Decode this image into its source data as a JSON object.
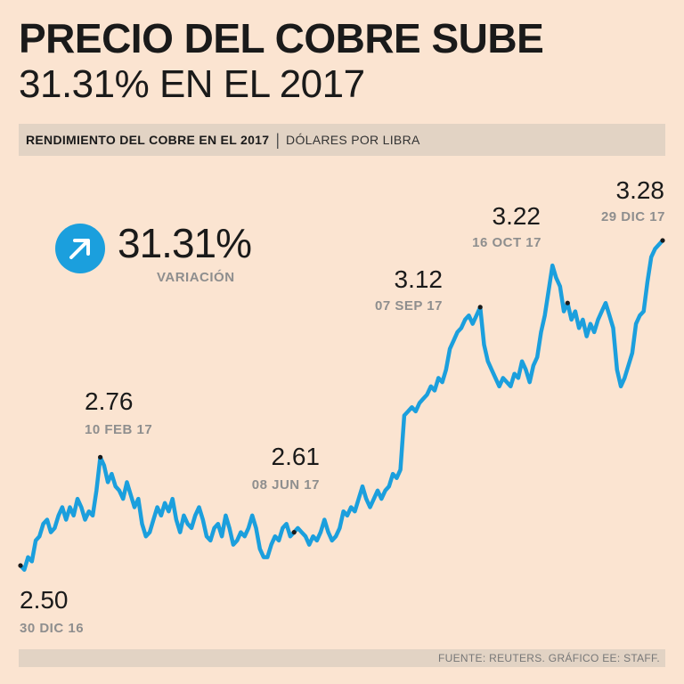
{
  "header": {
    "title": "PRECIO DEL COBRE SUBE",
    "subtitle": "31.31% EN EL 2017"
  },
  "band": {
    "label": "RENDIMIENTO DEL COBRE EN EL 2017",
    "unit": "DÓLARES POR LIBRA"
  },
  "variation": {
    "icon": "arrow-up-right-icon",
    "value": "31.31%",
    "label": "VARIACIÓN",
    "color": "#1b9fdd"
  },
  "footer": {
    "source": "FUENTE: REUTERS. GRÁFICO EE: STAFF."
  },
  "chart_data": {
    "type": "line",
    "title": "RENDIMIENTO DEL COBRE EN EL 2017",
    "ylabel": "DÓLARES POR LIBRA",
    "line_color": "#1b9fdd",
    "ylim": [
      2.4,
      3.35
    ],
    "values": [
      2.5,
      2.49,
      2.52,
      2.51,
      2.56,
      2.57,
      2.6,
      2.61,
      2.58,
      2.59,
      2.62,
      2.64,
      2.61,
      2.64,
      2.62,
      2.66,
      2.64,
      2.61,
      2.63,
      2.62,
      2.68,
      2.76,
      2.74,
      2.7,
      2.72,
      2.69,
      2.68,
      2.66,
      2.7,
      2.67,
      2.64,
      2.66,
      2.6,
      2.57,
      2.58,
      2.61,
      2.64,
      2.62,
      2.65,
      2.63,
      2.66,
      2.61,
      2.58,
      2.62,
      2.6,
      2.59,
      2.62,
      2.64,
      2.61,
      2.57,
      2.56,
      2.59,
      2.6,
      2.57,
      2.62,
      2.59,
      2.55,
      2.56,
      2.58,
      2.57,
      2.59,
      2.62,
      2.59,
      2.54,
      2.52,
      2.52,
      2.55,
      2.57,
      2.56,
      2.59,
      2.6,
      2.57,
      2.58,
      2.59,
      2.58,
      2.57,
      2.55,
      2.57,
      2.56,
      2.58,
      2.61,
      2.58,
      2.56,
      2.57,
      2.59,
      2.63,
      2.62,
      2.64,
      2.63,
      2.66,
      2.69,
      2.66,
      2.64,
      2.66,
      2.68,
      2.66,
      2.68,
      2.69,
      2.72,
      2.71,
      2.73,
      2.86,
      2.87,
      2.88,
      2.87,
      2.89,
      2.9,
      2.91,
      2.93,
      2.92,
      2.95,
      2.94,
      2.97,
      3.02,
      3.04,
      3.06,
      3.07,
      3.09,
      3.1,
      3.08,
      3.1,
      3.12,
      3.03,
      2.99,
      2.97,
      2.95,
      2.93,
      2.95,
      2.94,
      2.93,
      2.96,
      2.95,
      2.99,
      2.97,
      2.94,
      2.98,
      3.0,
      3.06,
      3.1,
      3.16,
      3.22,
      3.19,
      3.17,
      3.11,
      3.13,
      3.09,
      3.11,
      3.07,
      3.09,
      3.05,
      3.08,
      3.06,
      3.09,
      3.11,
      3.13,
      3.1,
      3.07,
      2.97,
      2.93,
      2.95,
      2.98,
      3.01,
      3.08,
      3.1,
      3.11,
      3.18,
      3.24,
      3.26,
      3.27,
      3.28
    ],
    "annotations": [
      {
        "value": "2.50",
        "date": "30 DIC 16"
      },
      {
        "value": "2.76",
        "date": "10 FEB 17"
      },
      {
        "value": "2.61",
        "date": "08 JUN 17"
      },
      {
        "value": "3.12",
        "date": "07 SEP 17"
      },
      {
        "value": "3.22",
        "date": "16 OCT 17"
      },
      {
        "value": "3.28",
        "date": "29 DIC 17"
      }
    ]
  }
}
